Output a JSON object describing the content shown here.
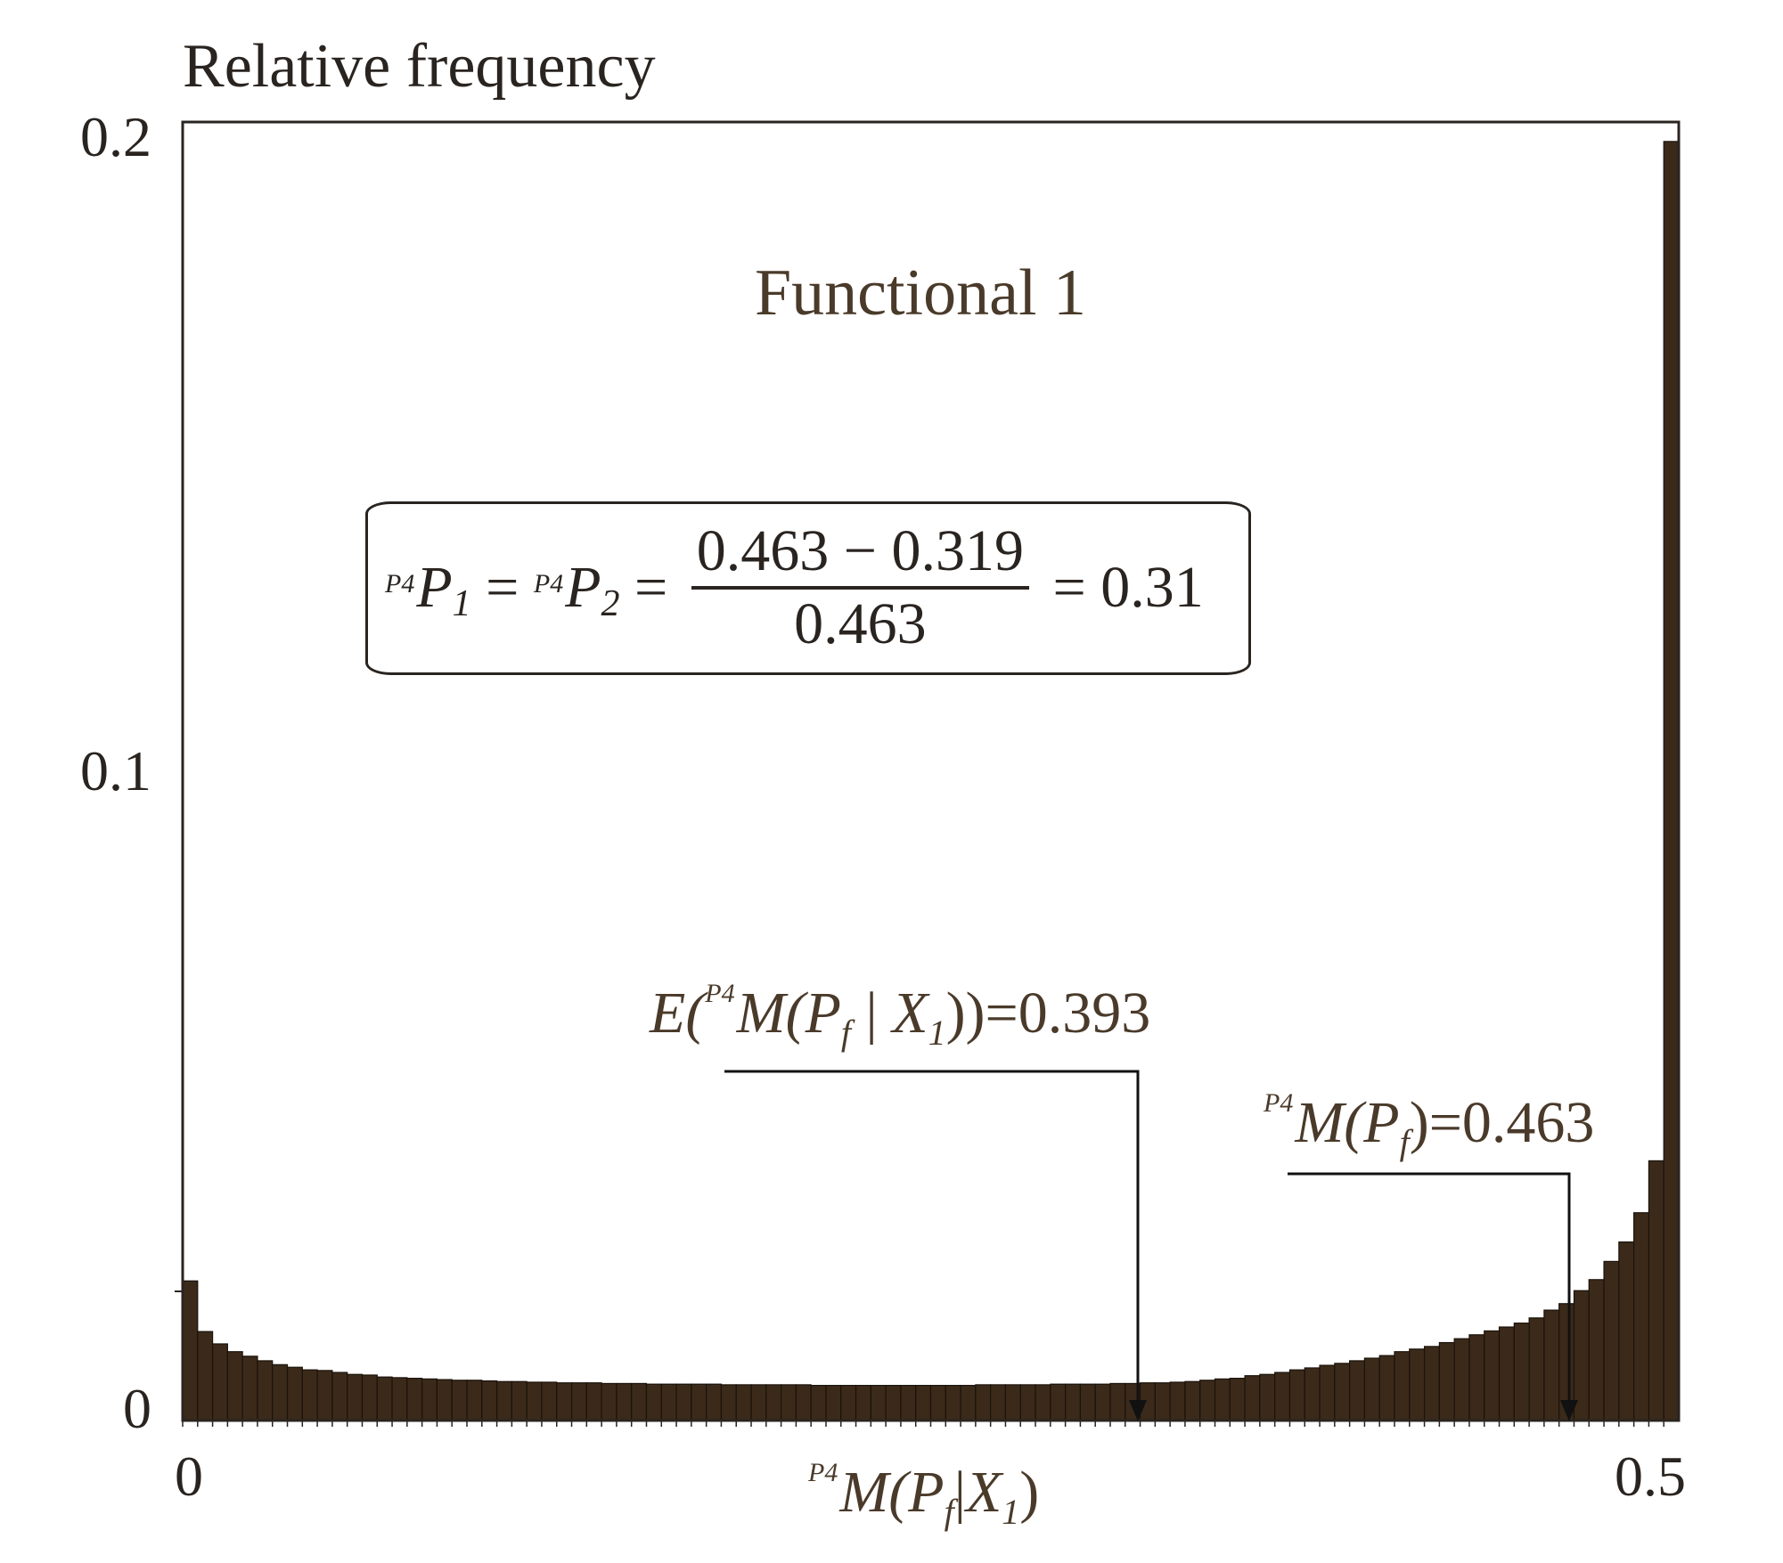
{
  "chart_data": {
    "type": "bar",
    "title": "Functional 1",
    "xlabel": "P4M(Pf|X1)",
    "ylabel": "Relative frequency",
    "xlim": [
      0,
      0.5
    ],
    "ylim": [
      0,
      0.2
    ],
    "x_tick_labels": [
      "0",
      "0.5"
    ],
    "y_tick_labels": [
      "0",
      "0.1",
      "0.2"
    ],
    "grid": false,
    "bin_width": 0.005,
    "bin_count": 100,
    "bar_color": "#3b2a1a",
    "values": [
      0.0215,
      0.0137,
      0.0118,
      0.0106,
      0.0099,
      0.0092,
      0.0086,
      0.0082,
      0.0078,
      0.0077,
      0.0074,
      0.0071,
      0.007,
      0.0067,
      0.0066,
      0.0065,
      0.0064,
      0.0063,
      0.0062,
      0.0062,
      0.0061,
      0.006,
      0.006,
      0.0059,
      0.0059,
      0.0058,
      0.0058,
      0.0058,
      0.0057,
      0.0057,
      0.0057,
      0.0056,
      0.0056,
      0.0056,
      0.0056,
      0.0056,
      0.0055,
      0.0055,
      0.0055,
      0.0055,
      0.0055,
      0.0055,
      0.0054,
      0.0054,
      0.0054,
      0.0054,
      0.0054,
      0.0054,
      0.0054,
      0.0054,
      0.0054,
      0.0054,
      0.0054,
      0.0055,
      0.0055,
      0.0055,
      0.0055,
      0.0055,
      0.0056,
      0.0056,
      0.0056,
      0.0056,
      0.0057,
      0.0057,
      0.0058,
      0.0058,
      0.0059,
      0.006,
      0.0062,
      0.0064,
      0.0065,
      0.0069,
      0.0071,
      0.0074,
      0.0078,
      0.0081,
      0.0085,
      0.0088,
      0.0092,
      0.0096,
      0.01,
      0.0106,
      0.011,
      0.0114,
      0.012,
      0.0126,
      0.0132,
      0.0138,
      0.0144,
      0.015,
      0.0158,
      0.017,
      0.018,
      0.02,
      0.0217,
      0.0245,
      0.0275,
      0.032,
      0.04,
      0.197
    ],
    "annotations": [
      {
        "text": "E(P4M(Pf|X1))=0.393",
        "x": 0.393,
        "arrow": true
      },
      {
        "text": "P4M(Pf)=0.463",
        "x": 0.463,
        "arrow": true
      },
      {
        "text": "P4P1 = P4P2 = (0.463 - 0.319) / 0.463 = 0.31",
        "boxed": true
      }
    ]
  },
  "labels": {
    "ylabel": "Relative frequency",
    "title": "Functional 1",
    "ytick_0": "0",
    "ytick_1": "0.1",
    "ytick_2": "0.2",
    "xtick_0": "0",
    "xtick_1": "0.5"
  },
  "xlabel": {
    "sup": "P4",
    "main1": "M(P",
    "sub_f": "f",
    "bar": "|",
    "main2": "X",
    "sub_1": "1",
    "close": ")"
  },
  "equation": {
    "sup1": "P4",
    "p1": "P",
    "p1_sub": "1",
    "eq1": " = ",
    "sup2": "P4",
    "p2": "P",
    "p2_sub": "2",
    "eq2": " = ",
    "numerator": "0.463 − 0.319",
    "denominator": "0.463",
    "eq3": " = ",
    "result": "0.31"
  },
  "annotation_mean": {
    "prefix": "E(",
    "sup": "P4",
    "m": "M(P",
    "sub_f": "f",
    "bar": " | ",
    "x": "X",
    "sub_1": "1",
    "suffix": "))=0.393"
  },
  "annotation_mpf": {
    "sup": "P4",
    "m": "M(P",
    "sub_f": "f",
    "suffix": ")=0.463"
  }
}
